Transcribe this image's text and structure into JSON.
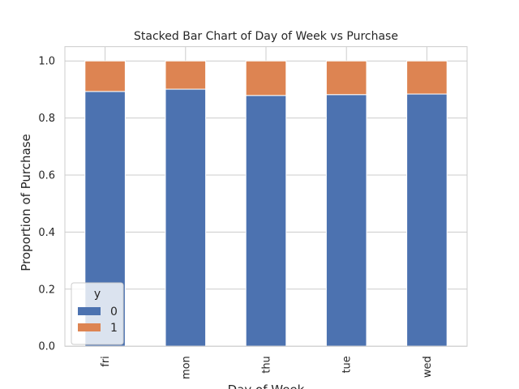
{
  "chart_data": {
    "type": "bar",
    "stacked": true,
    "title": "Stacked Bar Chart of Day of Week vs Purchase",
    "xlabel": "Day of Week",
    "ylabel": "Proportion of Purchase",
    "categories": [
      "fri",
      "mon",
      "thu",
      "tue",
      "wed"
    ],
    "series": [
      {
        "name": "0",
        "values": [
          0.893,
          0.901,
          0.879,
          0.882,
          0.884
        ],
        "color": "#4c72b0"
      },
      {
        "name": "1",
        "values": [
          0.107,
          0.099,
          0.121,
          0.118,
          0.116
        ],
        "color": "#dd8452"
      }
    ],
    "ylim": [
      0,
      1.05
    ],
    "yticks": [
      0.0,
      0.2,
      0.4,
      0.6,
      0.8,
      1.0
    ],
    "ytick_labels": [
      "0.0",
      "0.2",
      "0.4",
      "0.6",
      "0.8",
      "1.0"
    ],
    "xtick_rotation": 90,
    "grid": true,
    "legend": {
      "title": "y",
      "placement": "lower-left",
      "entries": [
        "0",
        "1"
      ]
    }
  }
}
